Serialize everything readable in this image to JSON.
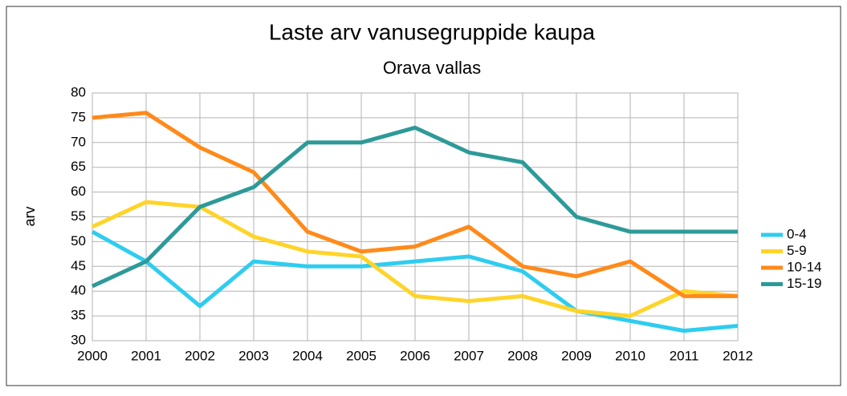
{
  "chart_data": {
    "type": "line",
    "title": "Laste arv vanusegruppide kaupa",
    "subtitle": "Orava vallas",
    "y_label": "arv",
    "categories": [
      "2000",
      "2001",
      "2002",
      "2003",
      "2004",
      "2005",
      "2006",
      "2007",
      "2008",
      "2009",
      "2010",
      "2011",
      "2012"
    ],
    "series": [
      {
        "name": "0-4",
        "color": "#2ecdf0",
        "values": [
          52,
          46,
          37,
          46,
          45,
          45,
          46,
          47,
          44,
          36,
          34,
          32,
          33
        ]
      },
      {
        "name": "5-9",
        "color": "#ffd42a",
        "values": [
          53,
          58,
          57,
          51,
          48,
          47,
          39,
          38,
          39,
          36,
          35,
          40,
          39
        ]
      },
      {
        "name": "10-14",
        "color": "#ff8a1a",
        "values": [
          75,
          76,
          69,
          64,
          52,
          48,
          49,
          53,
          45,
          43,
          46,
          39,
          39
        ]
      },
      {
        "name": "15-19",
        "color": "#2e9a98",
        "values": [
          41,
          46,
          57,
          61,
          70,
          70,
          73,
          68,
          66,
          55,
          52,
          52,
          52
        ]
      }
    ],
    "ylim": [
      30,
      80
    ],
    "yticks": [
      30,
      35,
      40,
      45,
      50,
      55,
      60,
      65,
      70,
      75,
      80
    ],
    "grid": true,
    "legend": "right"
  }
}
